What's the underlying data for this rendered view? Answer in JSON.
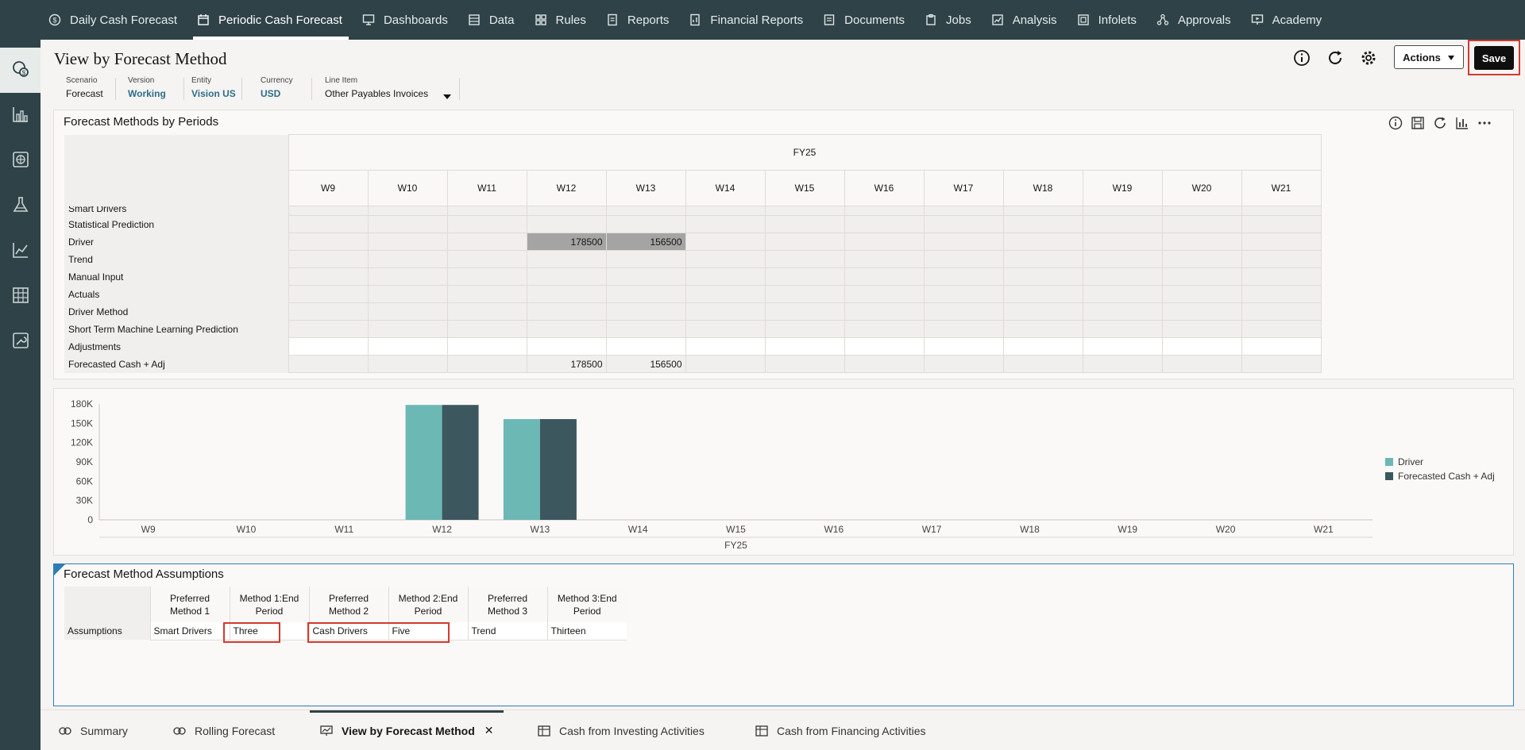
{
  "topnav": {
    "items": [
      {
        "label": "Daily Cash Forecast",
        "icon": "cash-cycle-icon"
      },
      {
        "label": "Periodic Cash Forecast",
        "icon": "calendar-cash-icon",
        "active": true
      },
      {
        "label": "Dashboards",
        "icon": "dashboard-icon"
      },
      {
        "label": "Data",
        "icon": "data-icon"
      },
      {
        "label": "Rules",
        "icon": "rules-icon"
      },
      {
        "label": "Reports",
        "icon": "reports-icon"
      },
      {
        "label": "Financial Reports",
        "icon": "financial-reports-icon"
      },
      {
        "label": "Documents",
        "icon": "documents-icon"
      },
      {
        "label": "Jobs",
        "icon": "jobs-icon"
      },
      {
        "label": "Analysis",
        "icon": "analysis-icon"
      },
      {
        "label": "Infolets",
        "icon": "infolets-icon"
      },
      {
        "label": "Approvals",
        "icon": "approvals-icon"
      },
      {
        "label": "Academy",
        "icon": "academy-icon"
      }
    ]
  },
  "leftrail": [
    "forecast-method-icon",
    "bar-chart-icon",
    "globe-add-icon",
    "flask-icon",
    "line-chart-icon",
    "grid-table-icon",
    "wrench-icon"
  ],
  "header": {
    "title": "View by Forecast Method",
    "pov": {
      "scenario": {
        "label": "Scenario",
        "value": "Forecast"
      },
      "version": {
        "label": "Version",
        "value": "Working"
      },
      "entity": {
        "label": "Entity",
        "value": "Vision US"
      },
      "currency": {
        "label": "Currency",
        "value": "USD"
      },
      "lineitem": {
        "label": "Line Item",
        "value": "Other Payables Invoices"
      }
    },
    "actions_label": "Actions",
    "save_label": "Save"
  },
  "grid": {
    "title": "Forecast Methods by Periods",
    "year": "FY25",
    "weeks": [
      "W9",
      "W10",
      "W11",
      "W12",
      "W13",
      "W14",
      "W15",
      "W16",
      "W17",
      "W18",
      "W19",
      "W20",
      "W21"
    ],
    "rows": [
      {
        "label": "Smart Drivers",
        "cells": [
          "",
          "",
          "",
          "",
          "",
          "",
          "",
          "",
          "",
          "",
          "",
          "",
          ""
        ]
      },
      {
        "label": "Statistical Prediction",
        "cells": [
          "",
          "",
          "",
          "",
          "",
          "",
          "",
          "",
          "",
          "",
          "",
          "",
          ""
        ]
      },
      {
        "label": "Driver",
        "cells": [
          "",
          "",
          "",
          "178500",
          "156500",
          "",
          "",
          "",
          "",
          "",
          "",
          "",
          ""
        ]
      },
      {
        "label": "Trend",
        "cells": [
          "",
          "",
          "",
          "",
          "",
          "",
          "",
          "",
          "",
          "",
          "",
          "",
          ""
        ]
      },
      {
        "label": "Manual Input",
        "cells": [
          "",
          "",
          "",
          "",
          "",
          "",
          "",
          "",
          "",
          "",
          "",
          "",
          ""
        ]
      },
      {
        "label": "Actuals",
        "cells": [
          "",
          "",
          "",
          "",
          "",
          "",
          "",
          "",
          "",
          "",
          "",
          "",
          ""
        ]
      },
      {
        "label": "Driver Method",
        "cells": [
          "",
          "",
          "",
          "",
          "",
          "",
          "",
          "",
          "",
          "",
          "",
          "",
          ""
        ]
      },
      {
        "label": "Short Term Machine Learning Prediction",
        "cells": [
          "",
          "",
          "",
          "",
          "",
          "",
          "",
          "",
          "",
          "",
          "",
          "",
          ""
        ]
      },
      {
        "label": "Adjustments",
        "cells": [
          "",
          "",
          "",
          "",
          "",
          "",
          "",
          "",
          "",
          "",
          "",
          "",
          ""
        ]
      },
      {
        "label": "Forecasted Cash + Adj",
        "cells": [
          "",
          "",
          "",
          "178500",
          "156500",
          "",
          "",
          "",
          "",
          "",
          "",
          "",
          ""
        ]
      }
    ]
  },
  "chart_data": {
    "type": "bar",
    "categories": [
      "W9",
      "W10",
      "W11",
      "W12",
      "W13",
      "W14",
      "W15",
      "W16",
      "W17",
      "W18",
      "W19",
      "W20",
      "W21"
    ],
    "series": [
      {
        "name": "Driver",
        "color": "#6bb8b5",
        "values": [
          0,
          0,
          0,
          178500,
          156500,
          0,
          0,
          0,
          0,
          0,
          0,
          0,
          0
        ]
      },
      {
        "name": "Forecasted Cash + Adj",
        "color": "#3c575d",
        "values": [
          0,
          0,
          0,
          178500,
          156500,
          0,
          0,
          0,
          0,
          0,
          0,
          0,
          0
        ]
      }
    ],
    "yticks": [
      "0",
      "30K",
      "60K",
      "90K",
      "120K",
      "150K",
      "180K"
    ],
    "ylim": [
      0,
      180000
    ],
    "xgroup_label": "FY25",
    "legend_position": "right"
  },
  "assumptions": {
    "title": "Forecast Method Assumptions",
    "headers": [
      [
        "Preferred",
        "Method 1"
      ],
      [
        "Method 1:End",
        "Period"
      ],
      [
        "Preferred",
        "Method 2"
      ],
      [
        "Method 2:End",
        "Period"
      ],
      [
        "Preferred",
        "Method 3"
      ],
      [
        "Method 3:End",
        "Period"
      ]
    ],
    "row_label": "Assumptions",
    "values": [
      "Smart Drivers",
      "Three",
      "Cash Drivers",
      "Five",
      "Trend",
      "Thirteen"
    ]
  },
  "bottom_tabs": [
    {
      "label": "Summary",
      "icon": "summary-icon"
    },
    {
      "label": "Rolling Forecast",
      "icon": "rolling-forecast-icon"
    },
    {
      "label": "View by Forecast Method",
      "icon": "forecast-method-tab-icon",
      "active": true
    },
    {
      "label": "Cash from Investing Activities",
      "icon": "investing-icon"
    },
    {
      "label": "Cash from Financing Activities",
      "icon": "financing-icon"
    }
  ]
}
